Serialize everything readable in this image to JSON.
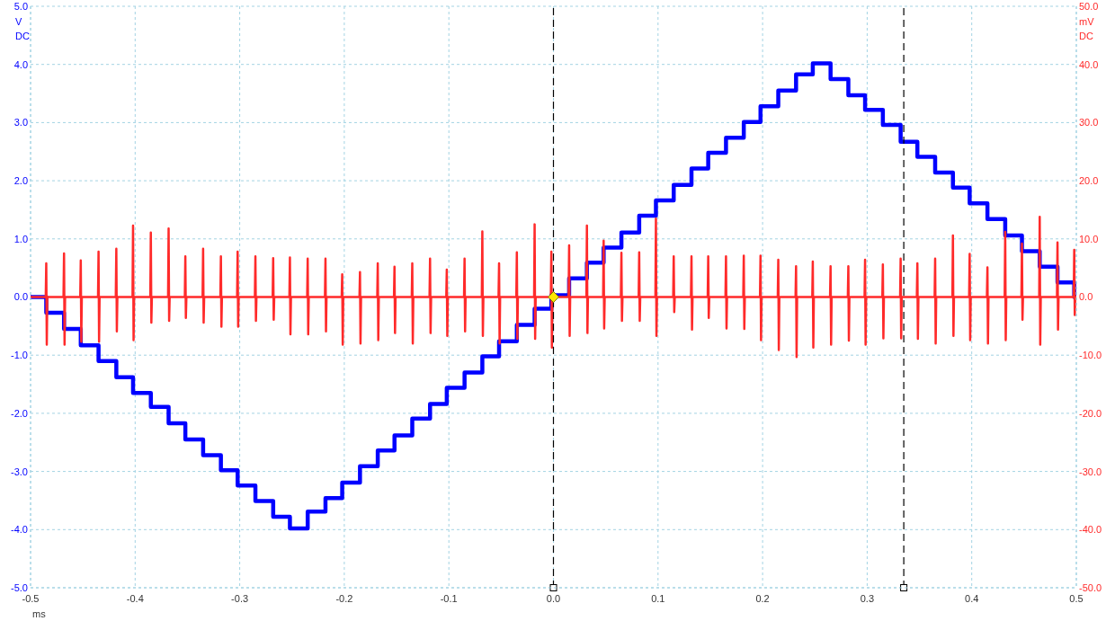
{
  "chart_data": {
    "type": "line",
    "xlabel": "ms",
    "ylabel": "V\nDC",
    "y2label": "mV\nDC",
    "xlim": [
      -0.5,
      0.5
    ],
    "xticks": [
      -0.5,
      -0.4,
      -0.3,
      -0.2,
      -0.1,
      {
        "value": 0,
        "label": "0.0"
      },
      0.1,
      0.2,
      0.3,
      0.4,
      0.5
    ],
    "ylim": [
      -5,
      5
    ],
    "yticks": [
      {
        "value": -5,
        "label": "-5.0"
      },
      {
        "value": -4,
        "label": "-4.0"
      },
      {
        "value": -3,
        "label": "-3.0"
      },
      {
        "value": -2,
        "label": "-2.0"
      },
      {
        "value": -1,
        "label": "-1.0"
      },
      {
        "value": 0,
        "label": "0.0"
      },
      {
        "value": 1,
        "label": "1.0"
      },
      {
        "value": 2,
        "label": "2.0"
      },
      {
        "value": 3,
        "label": "3.0"
      },
      {
        "value": 4,
        "label": "4.0"
      },
      {
        "value": 5,
        "label": "5.0"
      }
    ],
    "y2lim": [
      -50,
      50
    ],
    "y2ticks": [
      {
        "value": -50,
        "label": "-50.0"
      },
      {
        "value": -40,
        "label": "-40.0"
      },
      {
        "value": -30,
        "label": "-30.0"
      },
      {
        "value": -20,
        "label": "-20.0"
      },
      {
        "value": -10,
        "label": "-10.0"
      },
      {
        "value": 0,
        "label": "0.0"
      },
      {
        "value": 10,
        "label": "10.0"
      },
      {
        "value": 20,
        "label": "20.0"
      },
      {
        "value": 30,
        "label": "30.0"
      },
      {
        "value": 40,
        "label": "40.0"
      },
      {
        "value": 50,
        "label": "50.0"
      }
    ],
    "grid": true,
    "ref_lines": [
      {
        "axis": "x",
        "value": 0,
        "color": "#000000",
        "line_style": "dashed"
      },
      {
        "axis": "x",
        "value": 0.335,
        "color": "#000000",
        "line_style": "dashed"
      }
    ],
    "series": [
      {
        "type": "step",
        "color": "#0000ff",
        "x": [
          -0.5,
          -0.485,
          -0.468,
          -0.452,
          -0.435,
          -0.418,
          -0.402,
          -0.385,
          -0.368,
          -0.352,
          -0.335,
          -0.318,
          -0.302,
          -0.285,
          -0.268,
          -0.252,
          -0.235,
          -0.218,
          -0.202,
          -0.185,
          -0.168,
          -0.152,
          -0.135,
          -0.118,
          -0.102,
          -0.085,
          -0.068,
          -0.052,
          -0.035,
          -0.018,
          -0.002,
          0.015,
          0.032,
          0.048,
          0.065,
          0.082,
          0.098,
          0.115,
          0.132,
          0.148,
          0.165,
          0.182,
          0.198,
          0.215,
          0.232,
          0.248,
          0.265,
          0.282,
          0.298,
          0.315,
          0.332,
          0.348,
          0.365,
          0.382,
          0.398,
          0.415,
          0.432,
          0.448,
          0.465,
          0.482,
          0.498,
          0.5
        ],
        "values": [
          0,
          -0.27,
          -0.55,
          -0.83,
          -1.1,
          -1.38,
          -1.65,
          -1.89,
          -2.17,
          -2.45,
          -2.72,
          -2.98,
          -3.24,
          -3.51,
          -3.78,
          -3.98,
          -3.69,
          -3.46,
          -3.19,
          -2.91,
          -2.64,
          -2.38,
          -2.09,
          -1.84,
          -1.56,
          -1.3,
          -1.02,
          -0.76,
          -0.48,
          -0.2,
          0.03,
          0.32,
          0.59,
          0.85,
          1.11,
          1.4,
          1.66,
          1.93,
          2.21,
          2.48,
          2.74,
          3.01,
          3.28,
          3.55,
          3.83,
          4.02,
          3.75,
          3.47,
          3.22,
          2.96,
          2.67,
          2.41,
          2.14,
          1.88,
          1.61,
          1.34,
          1.06,
          0.79,
          0.52,
          0.25,
          0,
          0
        ]
      },
      {
        "type": "line",
        "axis": "y2",
        "color": "#ff2a2a",
        "x": [
          -0.5,
          -0.4855,
          -0.485,
          -0.4845,
          -0.484,
          -0.4685,
          -0.468,
          -0.4675,
          -0.467,
          -0.4525,
          -0.452,
          -0.4515,
          -0.451,
          -0.4355,
          -0.435,
          -0.4345,
          -0.434,
          -0.4185,
          -0.418,
          -0.4175,
          -0.417,
          -0.4025,
          -0.402,
          -0.4015,
          -0.401,
          -0.3855,
          -0.385,
          -0.3845,
          -0.384,
          -0.3685,
          -0.368,
          -0.3675,
          -0.367,
          -0.3525,
          -0.352,
          -0.3515,
          -0.351,
          -0.3355,
          -0.335,
          -0.3345,
          -0.334,
          -0.3185,
          -0.318,
          -0.3175,
          -0.317,
          -0.3025,
          -0.302,
          -0.3015,
          -0.301,
          -0.2855,
          -0.285,
          -0.2845,
          -0.284,
          -0.2685,
          -0.268,
          -0.2675,
          -0.267,
          -0.2525,
          -0.252,
          -0.2515,
          -0.251,
          -0.2355,
          -0.235,
          -0.2345,
          -0.234,
          -0.2185,
          -0.218,
          -0.2175,
          -0.217,
          -0.2025,
          -0.202,
          -0.2015,
          -0.201,
          -0.1855,
          -0.185,
          -0.1845,
          -0.184,
          -0.1685,
          -0.168,
          -0.1675,
          -0.167,
          -0.1525,
          -0.152,
          -0.1515,
          -0.151,
          -0.1355,
          -0.135,
          -0.1345,
          -0.134,
          -0.1185,
          -0.118,
          -0.1175,
          -0.117,
          -0.1025,
          -0.102,
          -0.1015,
          -0.101,
          -0.0855,
          -0.085,
          -0.0845,
          -0.084,
          -0.0685,
          -0.068,
          -0.0675,
          -0.067,
          -0.0525,
          -0.052,
          -0.0515,
          -0.051,
          -0.0355,
          -0.035,
          -0.0345,
          -0.034,
          -0.0185,
          -0.018,
          -0.0175,
          -0.017,
          -0.0025,
          -0.002,
          -0.0015,
          -0.001,
          0.0145,
          0.015,
          0.0155,
          0.016,
          0.0315,
          0.032,
          0.0325,
          0.033,
          0.0475,
          0.048,
          0.0485,
          0.049,
          0.0645,
          0.065,
          0.0655,
          0.066,
          0.0815,
          0.082,
          0.0825,
          0.083,
          0.0975,
          0.098,
          0.0985,
          0.099,
          0.1145,
          0.115,
          0.1155,
          0.116,
          0.1315,
          0.132,
          0.1325,
          0.133,
          0.1475,
          0.148,
          0.1485,
          0.149,
          0.1645,
          0.165,
          0.1655,
          0.166,
          0.1815,
          0.182,
          0.1825,
          0.183,
          0.1975,
          0.198,
          0.1985,
          0.199,
          0.2145,
          0.215,
          0.2155,
          0.216,
          0.2315,
          0.232,
          0.2325,
          0.233,
          0.2475,
          0.248,
          0.2485,
          0.249,
          0.2645,
          0.265,
          0.2655,
          0.266,
          0.2815,
          0.282,
          0.2825,
          0.283,
          0.2975,
          0.298,
          0.2985,
          0.299,
          0.3145,
          0.315,
          0.3155,
          0.316,
          0.3315,
          0.332,
          0.3325,
          0.333,
          0.3475,
          0.348,
          0.3485,
          0.349,
          0.3645,
          0.365,
          0.3655,
          0.366,
          0.3815,
          0.382,
          0.3825,
          0.383,
          0.3975,
          0.398,
          0.3985,
          0.399,
          0.4145,
          0.415,
          0.4155,
          0.416,
          0.4315,
          0.432,
          0.4325,
          0.433,
          0.4475,
          0.448,
          0.4485,
          0.449,
          0.4645,
          0.465,
          0.4655,
          0.466,
          0.4815,
          0.482,
          0.4825,
          0.483,
          0.4975,
          0.498,
          0.4985,
          0.499,
          0.5
        ],
        "values": [
          0,
          0,
          5.8,
          -8.2,
          0,
          0,
          7.5,
          -8.2,
          0,
          0,
          6.3,
          -7.7,
          0,
          0,
          7.8,
          -7.7,
          0,
          0,
          8.3,
          -5.9,
          0,
          0,
          12.3,
          -7.4,
          0,
          0,
          11.1,
          -4.4,
          0,
          0,
          11.8,
          -4.1,
          0,
          0,
          7.0,
          -3.6,
          0,
          0,
          8.3,
          -4.4,
          0,
          0,
          7.0,
          -5.1,
          0,
          0,
          7.8,
          -5.1,
          0,
          0,
          7.0,
          -4.1,
          0,
          0,
          6.7,
          -3.9,
          0,
          0,
          6.8,
          -6.4,
          0,
          0,
          6.6,
          -6.4,
          0,
          0,
          6.6,
          -5.9,
          0,
          0,
          3.9,
          -8.2,
          0,
          0,
          4.3,
          -8.0,
          0,
          0,
          5.8,
          -7.4,
          0,
          0,
          5.2,
          -6.2,
          0,
          0,
          5.8,
          -8.0,
          0,
          0,
          6.6,
          -6.2,
          0,
          0,
          4.7,
          -6.7,
          0,
          0,
          6.6,
          -5.9,
          0,
          0,
          11.3,
          -6.7,
          0,
          0,
          5.8,
          -8.0,
          0,
          0,
          7.7,
          -7.2,
          0,
          0,
          12.5,
          -7.2,
          0,
          0,
          7.8,
          -8.7,
          0,
          0,
          8.9,
          -6.7,
          0,
          0,
          12.3,
          -6.2,
          0,
          0,
          9.7,
          -5.4,
          0,
          0,
          7.6,
          -4.1,
          0,
          0,
          7.7,
          -4.1,
          0,
          0,
          13.5,
          -6.7,
          0,
          0,
          7.0,
          -2.6,
          0,
          0,
          7.0,
          -5.6,
          0,
          0,
          7.0,
          -3.6,
          0,
          0,
          7.0,
          -5.4,
          0,
          0,
          7.1,
          -5.5,
          0,
          0,
          7.1,
          -7.4,
          0,
          0,
          6.4,
          -9.1,
          0,
          0,
          5.3,
          -10.3,
          0,
          0,
          6.1,
          -8.7,
          0,
          0,
          5.3,
          -8.2,
          0,
          0,
          5.3,
          -7.5,
          0,
          0,
          6.4,
          -8.2,
          0,
          0,
          5.6,
          -7.1,
          0,
          0,
          6.6,
          -7.1,
          0,
          0,
          5.8,
          -7.2,
          0,
          0,
          6.6,
          -8.0,
          0,
          0,
          10.6,
          -6.7,
          0,
          0,
          7.4,
          -7.4,
          0,
          0,
          5.1,
          -8.0,
          0,
          0,
          11.2,
          -7.4,
          0,
          0,
          9.2,
          -3.9,
          0,
          0,
          13.8,
          -8.2,
          0,
          0,
          9.4,
          -5.6,
          0,
          0,
          8.1,
          -3.1,
          0,
          0
        ]
      }
    ]
  }
}
